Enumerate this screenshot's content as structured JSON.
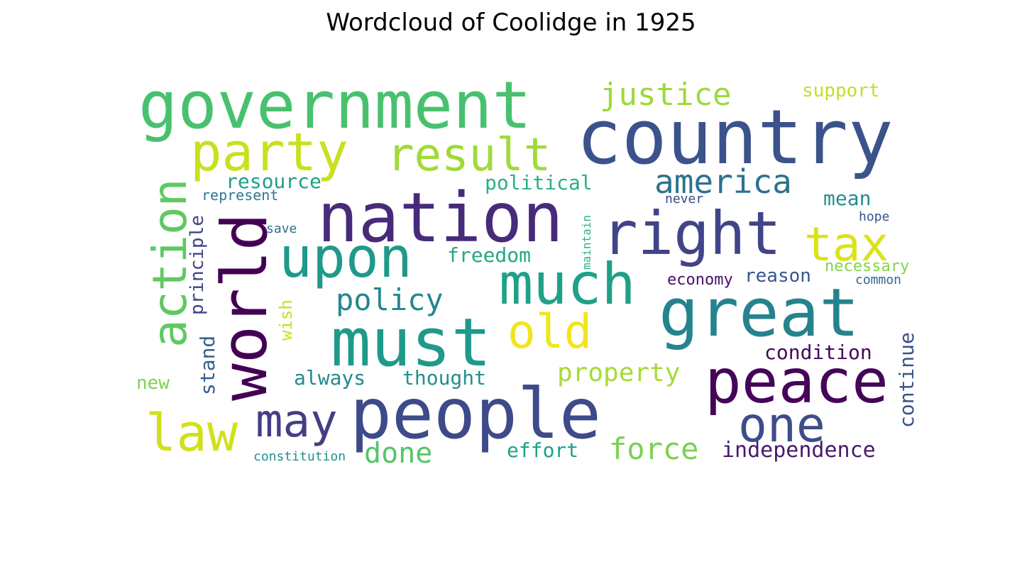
{
  "chart_data": {
    "type": "wordcloud",
    "title": "Wordcloud of Coolidge in 1925",
    "words": [
      {
        "text": "country",
        "color": "#3b528b"
      },
      {
        "text": "government",
        "color": "#48c16e"
      },
      {
        "text": "nation",
        "color": "#472a7a"
      },
      {
        "text": "people",
        "color": "#3e4a89"
      },
      {
        "text": "must",
        "color": "#1f9a8a"
      },
      {
        "text": "world",
        "color": "#440154"
      },
      {
        "text": "great",
        "color": "#25838e"
      },
      {
        "text": "right",
        "color": "#414487"
      },
      {
        "text": "much",
        "color": "#1fa187"
      },
      {
        "text": "upon",
        "color": "#1f998a"
      },
      {
        "text": "peace",
        "color": "#450559"
      },
      {
        "text": "party",
        "color": "#c8e020"
      },
      {
        "text": "action",
        "color": "#5ec962"
      },
      {
        "text": "law",
        "color": "#d0e11c"
      },
      {
        "text": "result",
        "color": "#a0da39"
      },
      {
        "text": "one",
        "color": "#3e4c8a"
      },
      {
        "text": "tax",
        "color": "#dae319"
      },
      {
        "text": "old",
        "color": "#f1e51d"
      },
      {
        "text": "may",
        "color": "#433e85"
      },
      {
        "text": "america",
        "color": "#2c728e"
      },
      {
        "text": "justice",
        "color": "#9dd93b"
      },
      {
        "text": "policy",
        "color": "#24878e"
      },
      {
        "text": "force",
        "color": "#7ad151"
      },
      {
        "text": "done",
        "color": "#54c568"
      },
      {
        "text": "property",
        "color": "#a5db36"
      },
      {
        "text": "independence",
        "color": "#481a6c"
      },
      {
        "text": "condition",
        "color": "#46075a"
      },
      {
        "text": "continue",
        "color": "#3b528b"
      },
      {
        "text": "principle",
        "color": "#414487"
      },
      {
        "text": "resource",
        "color": "#1f9e89"
      },
      {
        "text": "political",
        "color": "#2ab07f"
      },
      {
        "text": "freedom",
        "color": "#22a884"
      },
      {
        "text": "mean",
        "color": "#218f8d"
      },
      {
        "text": "support",
        "color": "#c2df23"
      },
      {
        "text": "reason",
        "color": "#39568c"
      },
      {
        "text": "stand",
        "color": "#355f8d"
      },
      {
        "text": "always",
        "color": "#23898e"
      },
      {
        "text": "thought",
        "color": "#21918c"
      },
      {
        "text": "effort",
        "color": "#1fa088"
      },
      {
        "text": "wish",
        "color": "#c5e021"
      },
      {
        "text": "new",
        "color": "#7fd34e"
      },
      {
        "text": "necessary",
        "color": "#84d44b"
      },
      {
        "text": "economy",
        "color": "#471365"
      },
      {
        "text": "represent",
        "color": "#2a788e"
      },
      {
        "text": "save",
        "color": "#2d708e"
      },
      {
        "text": "never",
        "color": "#3e4989"
      },
      {
        "text": "hope",
        "color": "#3b528b"
      },
      {
        "text": "common",
        "color": "#30688e"
      },
      {
        "text": "maintain",
        "color": "#2fb47c"
      },
      {
        "text": "constitution",
        "color": "#21918c"
      }
    ]
  }
}
